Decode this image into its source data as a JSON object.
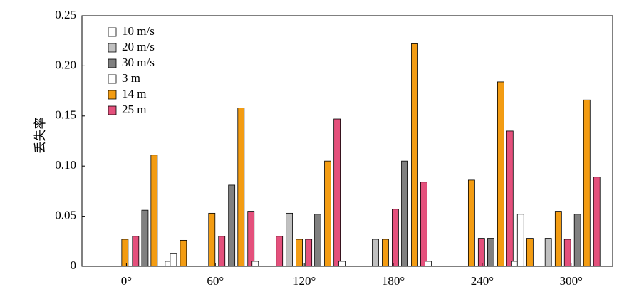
{
  "chart_data": {
    "type": "bar",
    "y_label": "丢失率",
    "x": [
      -1,
      6.2,
      12.5,
      18.7,
      28.3,
      31.7,
      38.4,
      57.6,
      64.3,
      71,
      77.3,
      84,
      86.9,
      103.2,
      109.9,
      116.6,
      122.9,
      129.1,
      135.8,
      142.1,
      145.4,
      168,
      174.7,
      181.4,
      187.7,
      194.4,
      200.6,
      203.5,
      232.8,
      239.5,
      245.8,
      252.5,
      258.7,
      262.1,
      265.9,
      272.2,
      284.6,
      291.4,
      297.6,
      304.3,
      310.6,
      317.3
    ],
    "values": [
      0.027,
      0.03,
      0.056,
      0.111,
      0.005,
      0.013,
      0.026,
      0.053,
      0.03,
      0.081,
      0.158,
      0.055,
      0.005,
      0.03,
      0.053,
      0.027,
      0.027,
      0.052,
      0.105,
      0.147,
      0.005,
      0.027,
      0.027,
      0.057,
      0.105,
      0.222,
      0.084,
      0.005,
      0.086,
      0.028,
      0.028,
      0.184,
      0.135,
      0.005,
      0.052,
      0.028,
      0.028,
      0.055,
      0.027,
      0.052,
      0.166,
      0.089
    ],
    "colors": [
      "#f39c12",
      "#e4507c",
      "#808080",
      "#f39c12",
      "#ffffff",
      "#ffffff",
      "#f39c12",
      "#f39c12",
      "#e4507c",
      "#808080",
      "#f39c12",
      "#e4507c",
      "#ffffff",
      "#e4507c",
      "#c0c0c0",
      "#f39c12",
      "#e4507c",
      "#808080",
      "#f39c12",
      "#e4507c",
      "#ffffff",
      "#c0c0c0",
      "#f39c12",
      "#e4507c",
      "#808080",
      "#f39c12",
      "#e4507c",
      "#ffffff",
      "#f39c12",
      "#e4507c",
      "#808080",
      "#f39c12",
      "#e4507c",
      "#ffffff",
      "#ffffff",
      "#f39c12",
      "#c0c0c0",
      "#f39c12",
      "#e4507c",
      "#808080",
      "#f39c12",
      "#e4507c"
    ],
    "legend": [
      {
        "name": "10 m/s",
        "color": "#ffffff"
      },
      {
        "name": "20 m/s",
        "color": "#c0c0c0"
      },
      {
        "name": "30 m/s",
        "color": "#808080"
      },
      {
        "name": "3 m",
        "color": "#ffffff"
      },
      {
        "name": "14 m",
        "color": "#f39c12"
      },
      {
        "name": "25 m",
        "color": "#e4507c"
      }
    ],
    "xlim": [
      -30,
      328
    ],
    "xticks": [
      {
        "value": 0,
        "label": "0°"
      },
      {
        "value": 60,
        "label": "60°"
      },
      {
        "value": 120,
        "label": "120°"
      },
      {
        "value": 180,
        "label": "180°"
      },
      {
        "value": 240,
        "label": "240°"
      },
      {
        "value": 300,
        "label": "300°"
      }
    ],
    "ylim": [
      0,
      0.25
    ],
    "yticks": [
      0,
      0.05,
      {
        "value": 0.1,
        "label": "0.10"
      },
      0.15,
      {
        "value": 0.2,
        "label": "0.20"
      },
      0.25
    ]
  }
}
